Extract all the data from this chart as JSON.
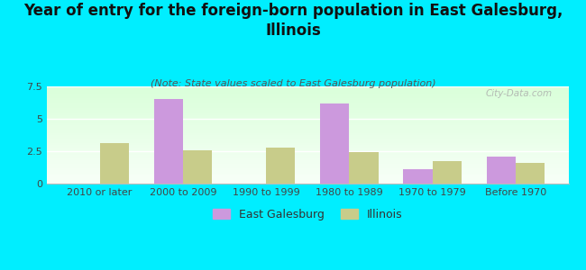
{
  "title": "Year of entry for the foreign-born population in East Galesburg,\nIllinois",
  "subtitle": "(Note: State values scaled to East Galesburg population)",
  "categories": [
    "2010 or later",
    "2000 to 2009",
    "1990 to 1999",
    "1980 to 1989",
    "1970 to 1979",
    "Before 1970"
  ],
  "east_galesburg": [
    0,
    6.5,
    0,
    6.2,
    1.1,
    2.1
  ],
  "illinois": [
    3.1,
    2.55,
    2.75,
    2.4,
    1.75,
    1.6
  ],
  "bar_color_eg": "#cc99dd",
  "bar_color_il": "#c8cc8a",
  "background_color": "#00eeff",
  "ylim": [
    0,
    7.5
  ],
  "yticks": [
    0,
    2.5,
    5,
    7.5
  ],
  "title_fontsize": 12,
  "subtitle_fontsize": 8,
  "tick_fontsize": 8,
  "legend_fontsize": 9,
  "bar_width": 0.35,
  "watermark": "City-Data.com"
}
